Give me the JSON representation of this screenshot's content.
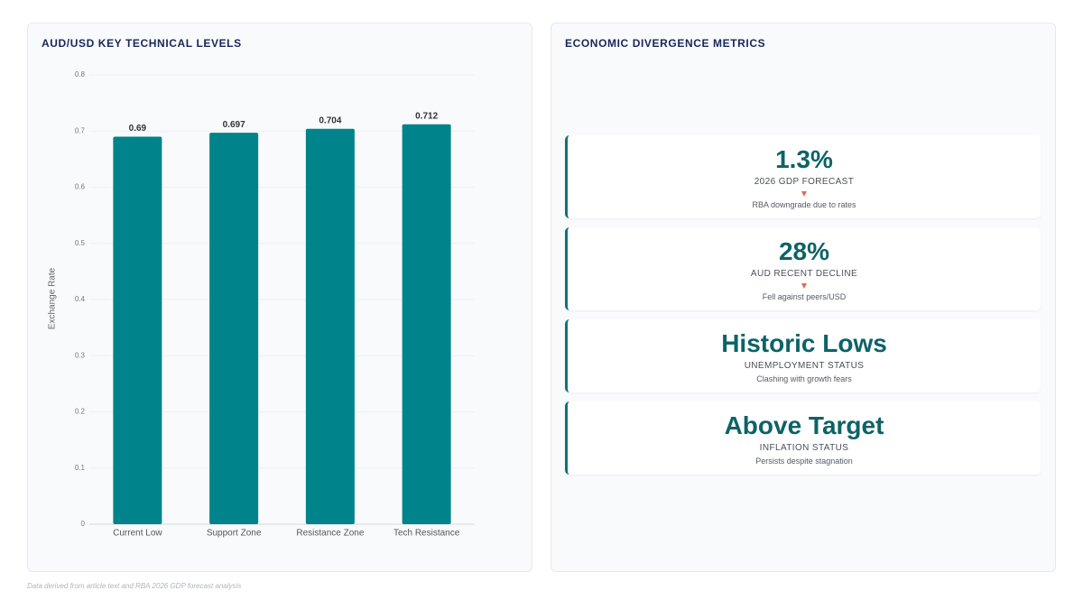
{
  "chart_data": {
    "type": "bar",
    "title": "AUD/USD KEY TECHNICAL LEVELS",
    "y_label": "Exchange Rate",
    "categories": [
      "Current Low",
      "Support Zone",
      "Resistance Zone",
      "Tech Resistance"
    ],
    "values": [
      0.69,
      0.697,
      0.704,
      0.712
    ],
    "color": "#00838a",
    "ylim": [
      0,
      0.8
    ],
    "yticks": [
      0,
      0.1,
      0.2,
      0.3,
      0.4,
      0.5,
      0.6,
      0.7,
      0.8
    ],
    "grid": true
  },
  "metrics": {
    "title": "ECONOMIC DIVERGENCE METRICS",
    "cards": [
      {
        "value": "1.3%",
        "label": "2026 GDP FORECAST",
        "trend": "down",
        "note": "RBA downgrade due to rates"
      },
      {
        "value": "28%",
        "label": "AUD RECENT DECLINE",
        "trend": "down",
        "note": "Fell against peers/USD"
      },
      {
        "value": "Historic Lows",
        "label": "UNEMPLOYMENT STATUS",
        "note": "Clashing with growth fears"
      },
      {
        "value": "Above Target",
        "label": "INFLATION STATUS",
        "note": "Persists despite stagnation"
      }
    ]
  },
  "footer": "Data derived from article text and RBA 2026 GDP forecast analysis"
}
